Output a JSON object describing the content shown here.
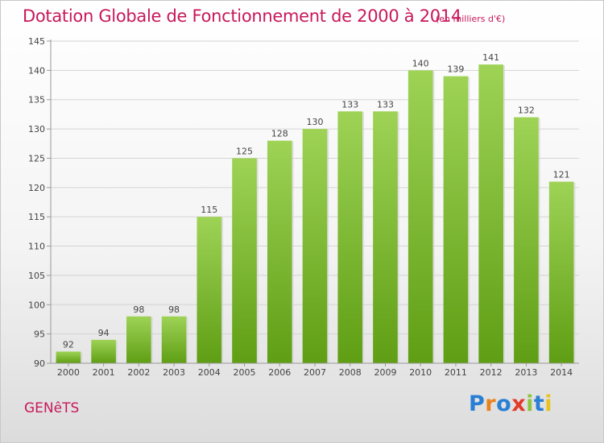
{
  "header": {
    "title": "Dotation Globale de Fonctionnement de 2000 à 2014",
    "unit": "(en milliers d'€)"
  },
  "footer": {
    "town": "GENêTS",
    "logo": "Proxiti"
  },
  "colors": {
    "title": "#c8185a",
    "bar_top": "#9ed356",
    "bar_bottom": "#5f9e14",
    "grid": "#d4d4d4"
  },
  "chart_data": {
    "type": "bar",
    "title": "Dotation Globale de Fonctionnement de 2000 à 2014",
    "subtitle": "(en milliers d'€)",
    "xlabel": "",
    "ylabel": "",
    "ylim": [
      90,
      145
    ],
    "yticks": [
      90,
      95,
      100,
      105,
      110,
      115,
      120,
      125,
      130,
      135,
      140,
      145
    ],
    "grid": true,
    "categories": [
      "2000",
      "2001",
      "2002",
      "2003",
      "2004",
      "2005",
      "2006",
      "2007",
      "2008",
      "2009",
      "2010",
      "2011",
      "2012",
      "2013",
      "2014"
    ],
    "values": [
      92,
      94,
      98,
      98,
      115,
      125,
      128,
      130,
      133,
      133,
      140,
      139,
      141,
      132,
      121
    ]
  }
}
